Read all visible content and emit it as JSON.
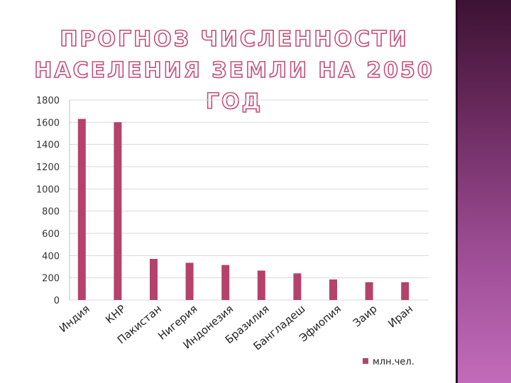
{
  "slide": {
    "title_line1": "ПРОГНОЗ ЧИСЛЕННОСТИ",
    "title_line2": "НАСЕЛЕНИЯ ЗЕМЛИ НА 2050 ГОД"
  },
  "colors": {
    "bar": "#b5426b",
    "grid": "#d9d9d9",
    "title_outline": "#c2527a",
    "side_panel": "#7a3470"
  },
  "chart_data": {
    "type": "bar",
    "title": "",
    "xlabel": "",
    "ylabel": "",
    "categories": [
      "Индия",
      "КНР",
      "Пакистан",
      "Нигерия",
      "Индонезия",
      "Бразилия",
      "Бангладеш",
      "Эфиопия",
      "Заир",
      "Иран"
    ],
    "series": [
      {
        "name": "млн.чел.",
        "values": [
          1630,
          1600,
          370,
          335,
          315,
          265,
          240,
          185,
          160,
          160
        ]
      }
    ],
    "ylim": [
      0,
      1800
    ],
    "yticks": [
      "0",
      "200",
      "400",
      "600",
      "800",
      "1000",
      "1200",
      "1400",
      "1600",
      "1800"
    ],
    "grid": true,
    "legend": "bottom-right"
  }
}
